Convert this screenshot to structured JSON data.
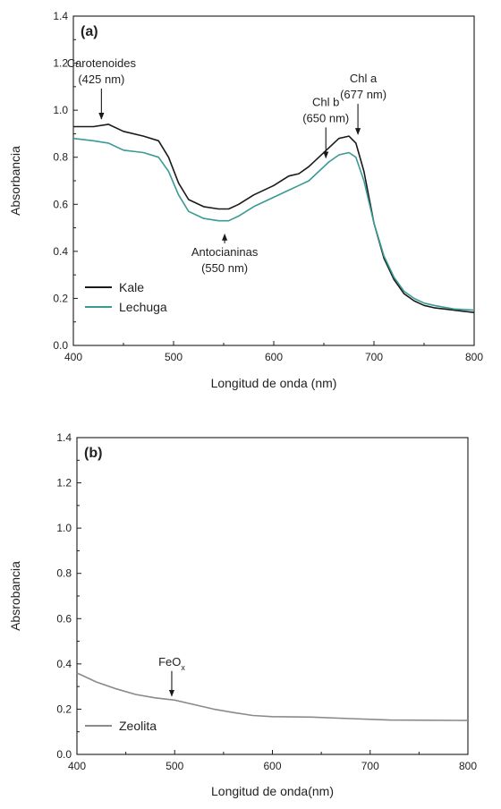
{
  "chart_data": [
    {
      "type": "line",
      "panel_label": "(a)",
      "xlabel": "Longitud de onda (nm)",
      "ylabel": "Absorbancia",
      "xlim": [
        400,
        800
      ],
      "ylim": [
        0.0,
        1.4
      ],
      "xticks": [
        400,
        500,
        600,
        700,
        800
      ],
      "yticks": [
        "0.0",
        "0.2",
        "0.4",
        "0.6",
        "0.8",
        "1.0",
        "1.2",
        "1.4"
      ],
      "grid": false,
      "legend_position": "bottom-left",
      "series": [
        {
          "name": "Kale",
          "color": "#1a1a1a",
          "x": [
            400,
            420,
            435,
            450,
            470,
            485,
            495,
            505,
            515,
            530,
            545,
            555,
            565,
            580,
            600,
            615,
            625,
            635,
            645,
            655,
            665,
            675,
            682,
            690,
            700,
            710,
            720,
            730,
            740,
            750,
            760,
            780,
            800
          ],
          "y": [
            0.93,
            0.93,
            0.94,
            0.91,
            0.89,
            0.87,
            0.8,
            0.69,
            0.62,
            0.59,
            0.58,
            0.58,
            0.6,
            0.64,
            0.68,
            0.72,
            0.73,
            0.76,
            0.8,
            0.84,
            0.88,
            0.89,
            0.86,
            0.74,
            0.52,
            0.37,
            0.28,
            0.22,
            0.19,
            0.17,
            0.16,
            0.15,
            0.14
          ]
        },
        {
          "name": "Lechuga",
          "color": "#3a9a94",
          "x": [
            400,
            420,
            435,
            450,
            470,
            485,
            495,
            505,
            515,
            530,
            545,
            555,
            565,
            580,
            600,
            615,
            625,
            635,
            645,
            655,
            665,
            675,
            682,
            690,
            700,
            710,
            720,
            730,
            740,
            750,
            760,
            780,
            800
          ],
          "y": [
            0.88,
            0.87,
            0.86,
            0.83,
            0.82,
            0.8,
            0.74,
            0.64,
            0.57,
            0.54,
            0.53,
            0.53,
            0.55,
            0.59,
            0.63,
            0.66,
            0.68,
            0.7,
            0.74,
            0.78,
            0.81,
            0.82,
            0.8,
            0.7,
            0.52,
            0.38,
            0.29,
            0.23,
            0.2,
            0.18,
            0.17,
            0.155,
            0.15
          ]
        }
      ],
      "annotations": [
        {
          "lines": [
            "Carotenoides",
            "(425 nm)"
          ],
          "x": 428,
          "y": 0.955,
          "direction": "down"
        },
        {
          "lines": [
            "Antocianinas",
            "(550 nm)"
          ],
          "x": 551,
          "y": 0.48,
          "direction": "up"
        },
        {
          "lines": [
            "Chl b",
            "(650 nm)"
          ],
          "x": 652,
          "y": 0.79,
          "direction": "down"
        },
        {
          "lines": [
            "Chl a",
            "(677 nm)"
          ],
          "x": 684,
          "y": 0.89,
          "direction": "down"
        }
      ]
    },
    {
      "type": "line",
      "panel_label": "(b)",
      "xlabel": "Longitud de onda(nm)",
      "ylabel": "Absrobancia",
      "xlim": [
        400,
        800
      ],
      "ylim": [
        0.0,
        1.4
      ],
      "xticks": [
        400,
        500,
        600,
        700,
        800
      ],
      "yticks": [
        "0.0",
        "0.2",
        "0.4",
        "0.6",
        "0.8",
        "1.0",
        "1.2",
        "1.4"
      ],
      "grid": false,
      "legend_position": "bottom-left",
      "series": [
        {
          "name": "Zeolita",
          "color": "#8a8a8a",
          "x": [
            400,
            420,
            440,
            460,
            480,
            500,
            520,
            540,
            560,
            580,
            600,
            640,
            680,
            720,
            760,
            800
          ],
          "y": [
            0.36,
            0.32,
            0.29,
            0.265,
            0.25,
            0.24,
            0.22,
            0.2,
            0.185,
            0.172,
            0.167,
            0.165,
            0.158,
            0.152,
            0.151,
            0.15
          ]
        }
      ],
      "annotations": [
        {
          "label": "FeO",
          "subscript": "x",
          "x": 497,
          "y": 0.25,
          "direction": "down"
        }
      ]
    }
  ]
}
